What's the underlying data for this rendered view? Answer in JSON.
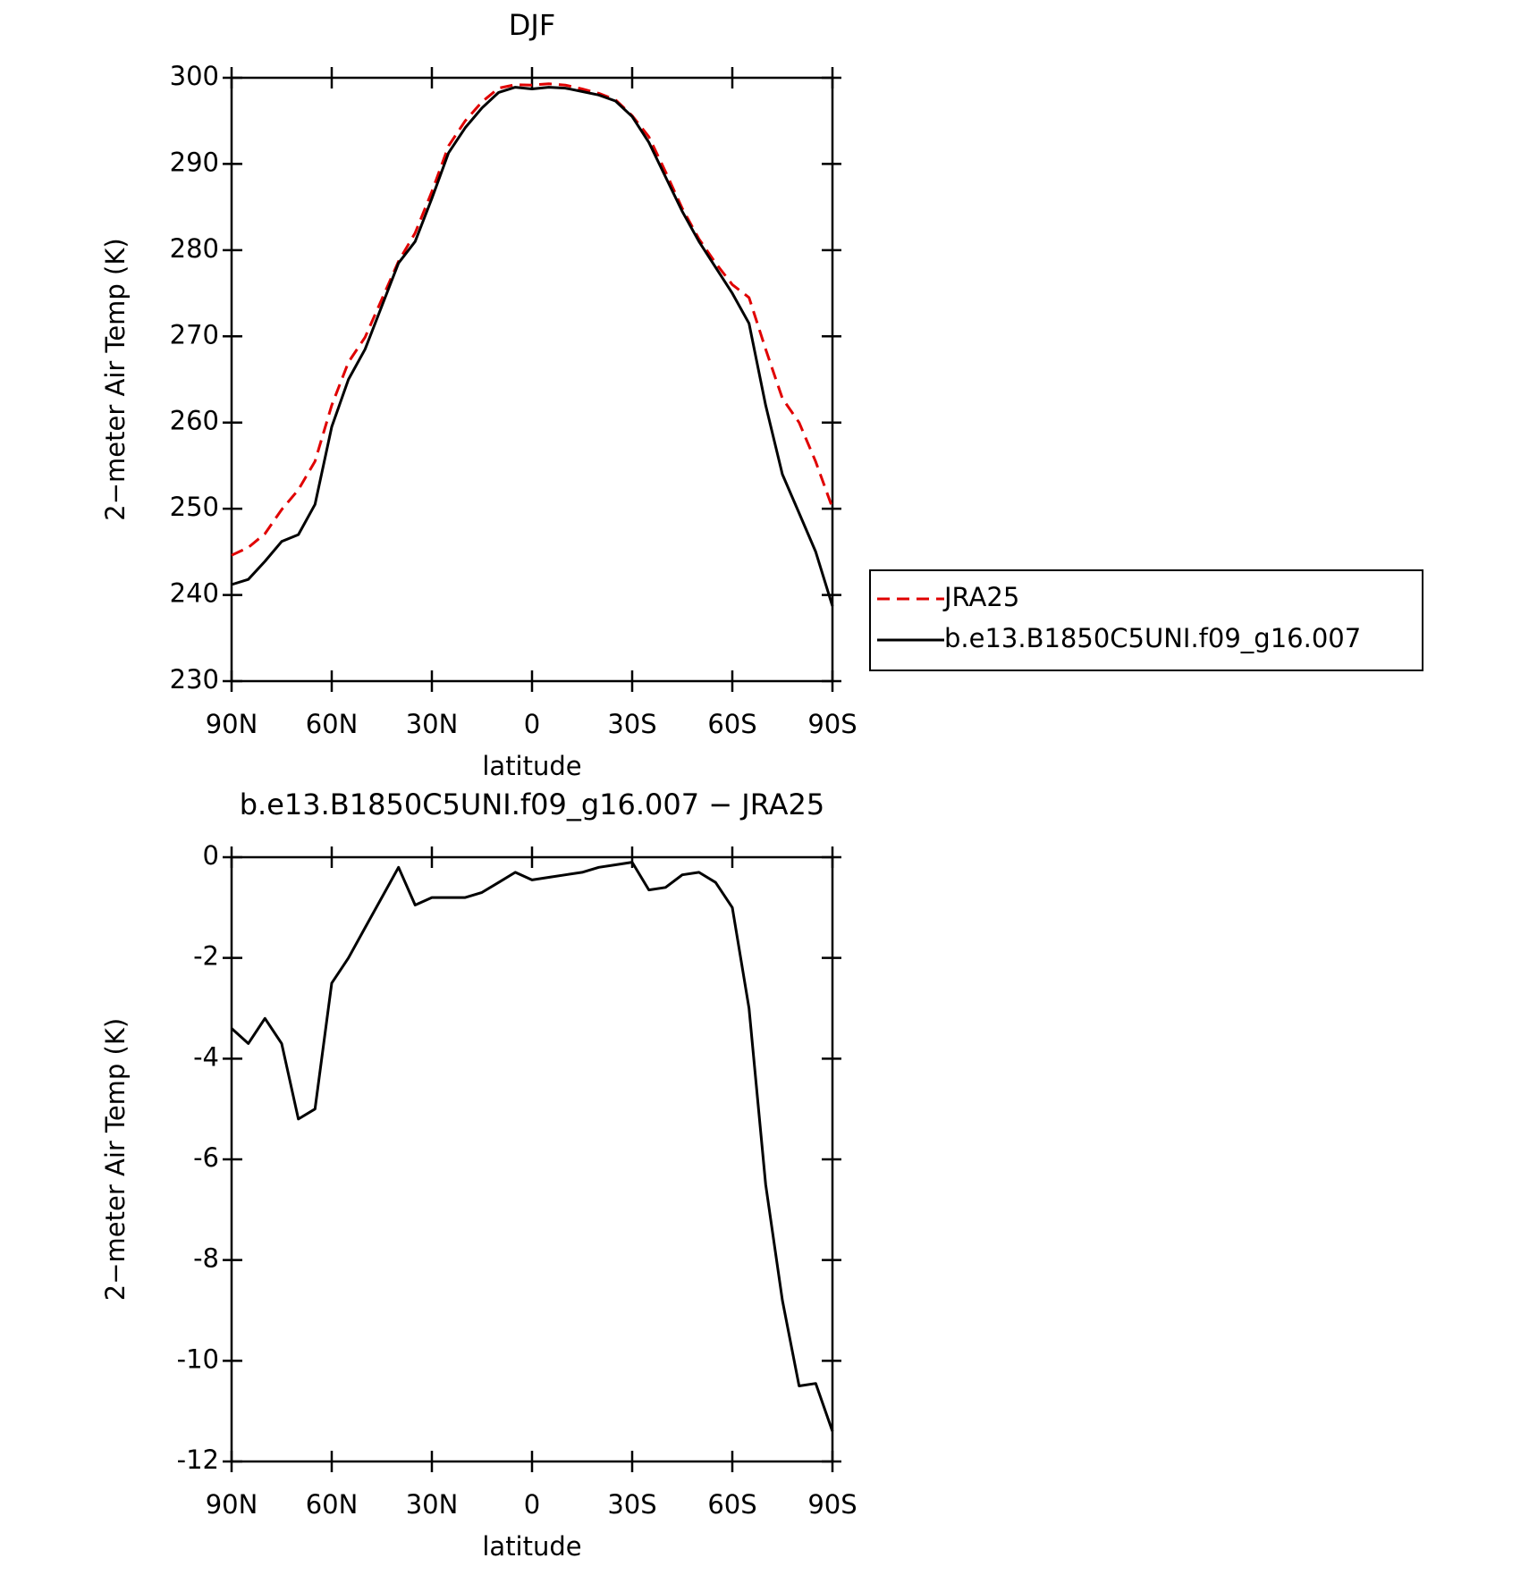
{
  "chart_data": [
    {
      "type": "line",
      "title": "DJF",
      "xlabel": "latitude",
      "ylabel": "2−meter Air Temp (K)",
      "x": [
        90,
        85,
        80,
        75,
        70,
        65,
        60,
        55,
        50,
        45,
        40,
        35,
        30,
        25,
        20,
        15,
        10,
        5,
        0,
        -5,
        -10,
        -15,
        -20,
        -25,
        -30,
        -35,
        -40,
        -45,
        -50,
        -55,
        -60,
        -65,
        -70,
        -75,
        -80,
        -85,
        -90
      ],
      "series": [
        {
          "name": "JRA25",
          "color": "#e00000",
          "dash": true,
          "values": [
            244.6,
            245.5,
            247.1,
            249.9,
            252.2,
            255.5,
            262,
            267,
            269.9,
            274.3,
            278.7,
            282,
            286.8,
            292.1,
            295,
            297.2,
            298.8,
            299.2,
            299.15,
            299.3,
            299.15,
            298.7,
            298.2,
            297.45,
            295.6,
            293.15,
            289.1,
            284.85,
            281.3,
            278.5,
            276,
            274.5,
            268.5,
            262.8,
            260,
            255.45,
            250.1
          ]
        },
        {
          "name": "b.e13.B1850C5UNI.f09_g16.007",
          "color": "#000000",
          "dash": false,
          "values": [
            241.2,
            241.8,
            243.9,
            246.2,
            247,
            250.5,
            259.5,
            265,
            268.5,
            273.5,
            278.5,
            281,
            286,
            291.3,
            294.2,
            296.5,
            298.3,
            298.9,
            298.7,
            298.9,
            298.8,
            298.4,
            298,
            297.3,
            295.5,
            292.5,
            288.5,
            284.5,
            281,
            278,
            275,
            271.5,
            262,
            254,
            249.5,
            245,
            238.7
          ]
        }
      ],
      "xlim": [
        90,
        -90
      ],
      "xticks": [
        {
          "value": 90,
          "label": "90N"
        },
        {
          "value": 60,
          "label": "60N"
        },
        {
          "value": 30,
          "label": "30N"
        },
        0,
        {
          "value": -30,
          "label": "30S"
        },
        {
          "value": -60,
          "label": "60S"
        },
        {
          "value": -90,
          "label": "90S"
        }
      ],
      "ylim": [
        230,
        300
      ],
      "yticks": [
        230,
        240,
        250,
        260,
        270,
        280,
        290,
        300
      ],
      "legend": true
    },
    {
      "type": "line",
      "title": "b.e13.B1850C5UNI.f09_g16.007 − JRA25",
      "xlabel": "latitude",
      "ylabel": "2−meter Air Temp (K)",
      "x": [
        90,
        85,
        80,
        75,
        70,
        65,
        60,
        55,
        50,
        45,
        40,
        35,
        30,
        25,
        20,
        15,
        10,
        5,
        0,
        -5,
        -10,
        -15,
        -20,
        -25,
        -30,
        -35,
        -40,
        -45,
        -50,
        -55,
        -60,
        -65,
        -70,
        -75,
        -80,
        -85,
        -90
      ],
      "series": [
        {
          "color": "#000000",
          "dash": false,
          "values": [
            -3.4,
            -3.7,
            -3.2,
            -3.7,
            -5.2,
            -5.0,
            -2.5,
            -2.0,
            -1.4,
            -0.8,
            -0.2,
            -0.95,
            -0.8,
            -0.8,
            -0.8,
            -0.7,
            -0.5,
            -0.3,
            -0.45,
            -0.4,
            -0.35,
            -0.3,
            -0.2,
            -0.15,
            -0.1,
            -0.65,
            -0.6,
            -0.35,
            -0.3,
            -0.5,
            -1.0,
            -3.0,
            -6.5,
            -8.8,
            -10.5,
            -10.45,
            -11.4
          ]
        }
      ],
      "xlim": [
        90,
        -90
      ],
      "xticks": [
        {
          "value": 90,
          "label": "90N"
        },
        {
          "value": 60,
          "label": "60N"
        },
        {
          "value": 30,
          "label": "30N"
        },
        0,
        {
          "value": -30,
          "label": "30S"
        },
        {
          "value": -60,
          "label": "60S"
        },
        {
          "value": -90,
          "label": "90S"
        }
      ],
      "ylim": [
        -12,
        0
      ],
      "yticks": [
        -12,
        -10,
        -8,
        -6,
        -4,
        -2,
        0
      ],
      "legend": false
    }
  ]
}
